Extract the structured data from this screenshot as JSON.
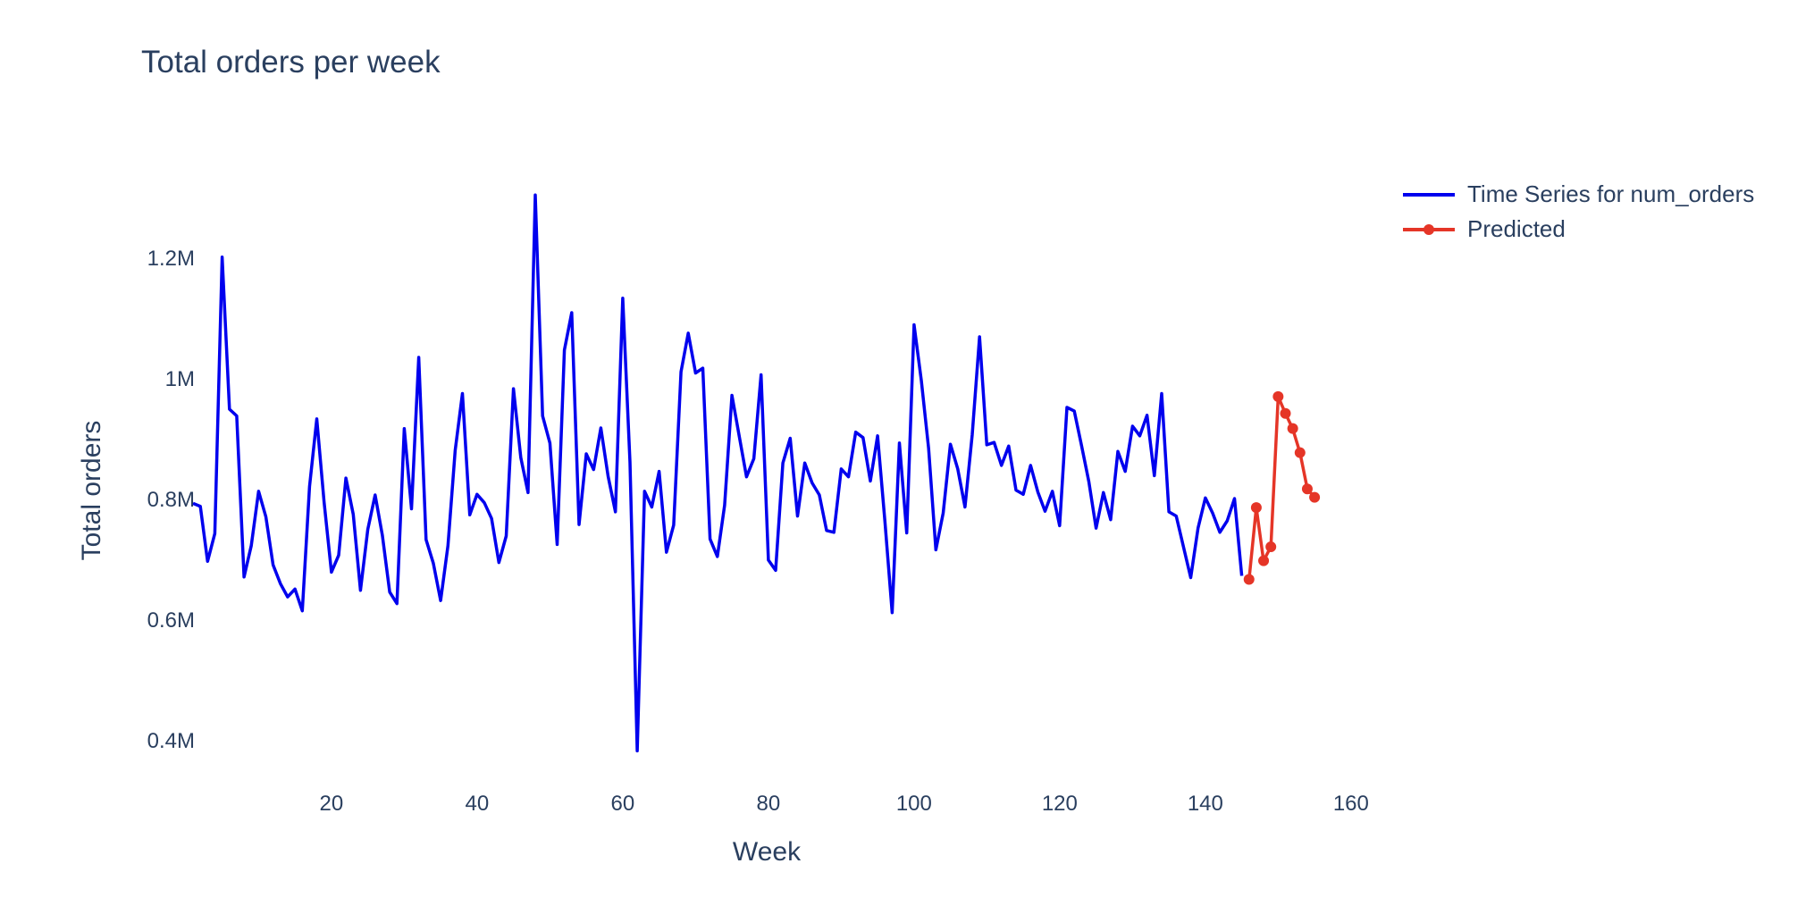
{
  "chart_data": {
    "type": "line",
    "title": "Total orders per week",
    "xlabel": "Week",
    "ylabel": "Total orders",
    "xlim": [
      1,
      161
    ],
    "ylim": [
      350000,
      1330000
    ],
    "x_ticks": [
      20,
      40,
      60,
      80,
      100,
      120,
      140,
      160
    ],
    "x_tick_labels": [
      "20",
      "40",
      "60",
      "80",
      "100",
      "120",
      "140",
      "160"
    ],
    "y_ticks": [
      400000,
      600000,
      800000,
      1000000,
      1200000
    ],
    "y_tick_labels": [
      "0.4M",
      "0.6M",
      "0.8M",
      "1M",
      "1.2M"
    ],
    "grid": false,
    "legend_position": "top-right",
    "series": [
      {
        "name": "Time Series for num_orders",
        "color": "#0000ee",
        "mode": "lines",
        "x_start": 1,
        "values": [
          792000,
          787000,
          696000,
          742000,
          1200000,
          948000,
          937000,
          670000,
          722000,
          812000,
          770000,
          690000,
          659000,
          637000,
          650000,
          614000,
          820000,
          932000,
          794000,
          678000,
          706000,
          834000,
          774000,
          648000,
          749000,
          806000,
          739000,
          645000,
          626000,
          916000,
          783000,
          1034000,
          732000,
          693000,
          631000,
          722000,
          880000,
          974000,
          773000,
          807000,
          793000,
          767000,
          694000,
          738000,
          982000,
          868000,
          810000,
          1303000,
          937000,
          892000,
          724000,
          1046000,
          1108000,
          757000,
          874000,
          848000,
          917000,
          837000,
          778000,
          1132000,
          860000,
          382000,
          812000,
          786000,
          845000,
          711000,
          756000,
          1010000,
          1074000,
          1008000,
          1016000,
          733000,
          704000,
          789000,
          971000,
          903000,
          836000,
          866000,
          1005000,
          698000,
          681000,
          859000,
          900000,
          771000,
          859000,
          826000,
          806000,
          747000,
          744000,
          849000,
          836000,
          910000,
          901000,
          829000,
          904000,
          762000,
          611000,
          892000,
          743000,
          1088000,
          996000,
          883000,
          715000,
          776000,
          890000,
          849000,
          786000,
          906000,
          1068000,
          889000,
          893000,
          855000,
          887000,
          814000,
          807000,
          855000,
          811000,
          779000,
          812000,
          755000,
          951000,
          945000,
          888000,
          828000,
          751000,
          810000,
          765000,
          878000,
          845000,
          920000,
          904000,
          938000,
          838000,
          974000,
          778000,
          771000,
          720000,
          669000,
          751000,
          801000,
          776000,
          744000,
          763000,
          800000,
          672000
        ]
      },
      {
        "name": "Predicted",
        "color": "#e53527",
        "mode": "lines+markers",
        "x": [
          146,
          147,
          148,
          149,
          150,
          151,
          152,
          153,
          154,
          155
        ],
        "values": [
          666000,
          785000,
          697000,
          720000,
          969000,
          941000,
          916000,
          876000,
          816000,
          802000
        ]
      }
    ]
  }
}
